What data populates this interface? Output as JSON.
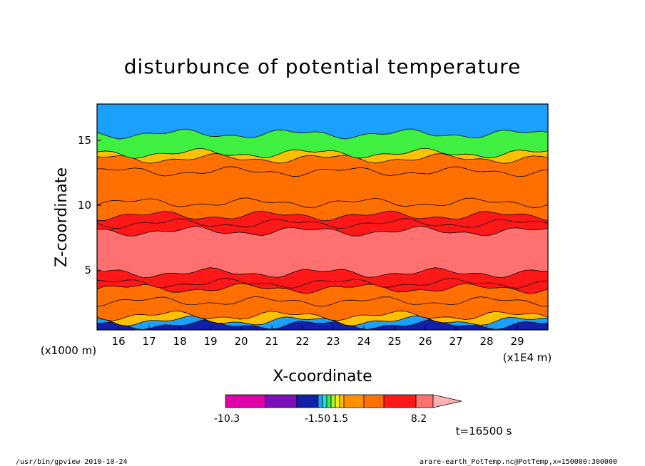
{
  "chart_data": {
    "type": "heatmap",
    "title": "disturbunce of potential temperature",
    "xlabel": "X-coordinate",
    "ylabel": "Z-coordinate",
    "x_unit_note": "(x1E4 m)",
    "y_unit_note": "(x1000 m)",
    "xlim": [
      15.3,
      30.0
    ],
    "ylim": [
      0.4,
      17.8
    ],
    "x_ticks": [
      "16",
      "17",
      "18",
      "19",
      "20",
      "21",
      "22",
      "23",
      "24",
      "25",
      "26",
      "27",
      "28",
      "29"
    ],
    "y_ticks": [
      "5",
      "10",
      "15"
    ],
    "colorbar": {
      "labels": [
        "-10.3",
        "-1.50",
        "1.5",
        "8.2"
      ],
      "colors": [
        "#e000a8",
        "#7a10b8",
        "#1020a8",
        "#1aa0ff",
        "#10e8d0",
        "#40f040",
        "#b0f030",
        "#f0f000",
        "#ffc000",
        "#ff9000",
        "#ff7000",
        "#ff1818",
        "#ff7070",
        "#ffb0b0"
      ]
    },
    "bands": [
      {
        "z": 0.4,
        "value": -5
      },
      {
        "z": 0.8,
        "value": -2
      },
      {
        "z": 1.1,
        "value": 0.6
      },
      {
        "z": 1.5,
        "value": 1.5
      },
      {
        "z": 2.6,
        "value": 2.2
      },
      {
        "z": 3.6,
        "value": 3.5
      },
      {
        "z": 4.0,
        "value": 4.5
      },
      {
        "z": 4.8,
        "value": 5.5
      },
      {
        "z": 8.0,
        "value": 4.5
      },
      {
        "z": 8.6,
        "value": 3.5
      },
      {
        "z": 9.2,
        "value": 2.5
      },
      {
        "z": 10.2,
        "value": 1.5
      },
      {
        "z": 12.6,
        "value": 2.5
      },
      {
        "z": 13.6,
        "value": 0.5
      },
      {
        "z": 14.0,
        "value": -1.0
      },
      {
        "z": 15.5,
        "value": -4.0
      },
      {
        "z": 17.8,
        "value": -2.0
      }
    ],
    "annotation": "t=16500 s"
  },
  "footer": {
    "left": "/usr/bin/gpview  2010-10-24",
    "right": "arare-earth_PotTemp.nc@PotTemp,x=150000:300000"
  }
}
